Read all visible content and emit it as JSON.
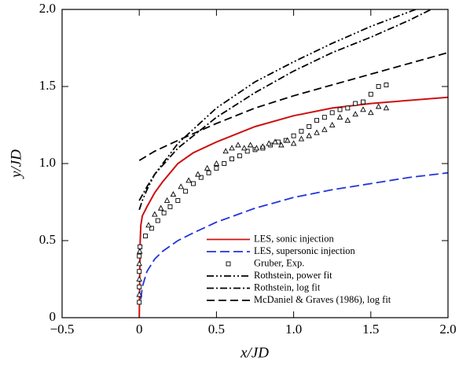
{
  "chart_data": {
    "type": "line",
    "x_label": "x/JD",
    "y_label": "y/JD",
    "xlim": [
      -0.5,
      2.0
    ],
    "ylim": [
      0,
      2.0
    ],
    "xticks": [
      {
        "value": -0.5,
        "label": "−0.5"
      },
      0,
      0.5,
      {
        "value": 1,
        "label": "1.0"
      },
      1.5,
      {
        "value": 2,
        "label": "2.0"
      }
    ],
    "yticks": [
      0,
      0.5,
      {
        "value": 1,
        "label": "1.0"
      },
      1.5,
      {
        "value": 2,
        "label": "2.0"
      }
    ],
    "legend": "lower right",
    "series": [
      {
        "name": "LES, sonic injection",
        "color": "#cc1111",
        "linestyle": "solid",
        "x": [
          0,
          0.003,
          0.006,
          0.01,
          0.02,
          0.05,
          0.1,
          0.15,
          0.25,
          0.35,
          0.5,
          0.75,
          1.0,
          1.25,
          1.5,
          1.75,
          2.0
        ],
        "values": [
          0,
          0.3,
          0.5,
          0.6,
          0.66,
          0.72,
          0.81,
          0.88,
          1.0,
          1.07,
          1.14,
          1.24,
          1.31,
          1.36,
          1.39,
          1.41,
          1.43
        ]
      },
      {
        "name": "LES, supersonic injection",
        "color": "#2233dd",
        "linestyle": "dashed",
        "x": [
          0.01,
          0.02,
          0.05,
          0.1,
          0.15,
          0.25,
          0.35,
          0.5,
          0.75,
          1.0,
          1.25,
          1.5,
          1.75,
          2.0
        ],
        "values": [
          0.12,
          0.2,
          0.3,
          0.38,
          0.43,
          0.5,
          0.55,
          0.62,
          0.71,
          0.78,
          0.83,
          0.87,
          0.91,
          0.94
        ]
      },
      {
        "name": "Gruber, Exp.",
        "color": "#000000",
        "linestyle": "none",
        "marker": "square",
        "x": [
          0,
          0,
          0,
          0,
          0.005,
          0.04,
          0.08,
          0.12,
          0.16,
          0.2,
          0.25,
          0.3,
          0.35,
          0.4,
          0.45,
          0.5,
          0.55,
          0.6,
          0.65,
          0.7,
          0.75,
          0.8,
          0.85,
          0.9,
          0.95,
          1.0,
          1.05,
          1.1,
          1.15,
          1.2,
          1.25,
          1.3,
          1.35,
          1.4,
          1.45,
          1.5,
          1.55,
          1.6
        ],
        "values": [
          0.1,
          0.2,
          0.3,
          0.4,
          0.46,
          0.53,
          0.58,
          0.63,
          0.68,
          0.72,
          0.76,
          0.82,
          0.87,
          0.91,
          0.94,
          0.97,
          1.0,
          1.03,
          1.05,
          1.08,
          1.09,
          1.1,
          1.12,
          1.14,
          1.15,
          1.18,
          1.21,
          1.24,
          1.28,
          1.3,
          1.33,
          1.35,
          1.36,
          1.39,
          1.4,
          1.45,
          1.5,
          1.51
        ]
      },
      {
        "color": "#000000",
        "linestyle": "none",
        "marker": "triangle",
        "x": [
          0,
          0,
          0,
          0.003,
          0.06,
          0.1,
          0.14,
          0.18,
          0.22,
          0.27,
          0.32,
          0.38,
          0.44,
          0.5,
          0.56,
          0.6,
          0.64,
          0.68,
          0.72,
          0.76,
          0.8,
          0.84,
          0.88,
          0.92,
          0.96,
          1.0,
          1.05,
          1.1,
          1.15,
          1.2,
          1.25,
          1.3,
          1.35,
          1.4,
          1.45,
          1.5,
          1.55,
          1.6
        ],
        "values": [
          0.15,
          0.25,
          0.35,
          0.43,
          0.6,
          0.67,
          0.71,
          0.76,
          0.8,
          0.85,
          0.89,
          0.93,
          0.97,
          1.0,
          1.08,
          1.1,
          1.12,
          1.1,
          1.12,
          1.1,
          1.11,
          1.13,
          1.14,
          1.12,
          1.15,
          1.13,
          1.16,
          1.18,
          1.2,
          1.22,
          1.25,
          1.3,
          1.28,
          1.32,
          1.35,
          1.33,
          1.37,
          1.36
        ]
      },
      {
        "name": "Rothstein, power fit",
        "color": "#000000",
        "linestyle": "dashdotdot",
        "x": [
          0,
          0.02,
          0.05,
          0.1,
          0.25,
          0.5,
          0.75,
          1.0,
          1.25,
          1.5,
          1.79
        ],
        "values": [
          0.7,
          0.76,
          0.83,
          0.93,
          1.13,
          1.36,
          1.53,
          1.66,
          1.78,
          1.89,
          2.0
        ]
      },
      {
        "name": "Rothstein, log fit",
        "color": "#000000",
        "linestyle": "dashdot",
        "x": [
          0,
          0.05,
          0.1,
          0.25,
          0.5,
          0.75,
          1.0,
          1.25,
          1.5,
          1.75,
          1.89
        ],
        "values": [
          0.76,
          0.85,
          0.93,
          1.1,
          1.3,
          1.46,
          1.6,
          1.72,
          1.82,
          1.93,
          2.0
        ]
      },
      {
        "name": "McDaniel & Graves (1986), log fit",
        "color": "#000000",
        "linestyle": "longdash",
        "x": [
          0,
          0.1,
          0.25,
          0.5,
          0.75,
          1.0,
          1.25,
          1.5,
          1.75,
          2.0
        ],
        "values": [
          1.02,
          1.08,
          1.15,
          1.26,
          1.36,
          1.44,
          1.51,
          1.58,
          1.65,
          1.72
        ]
      }
    ]
  }
}
